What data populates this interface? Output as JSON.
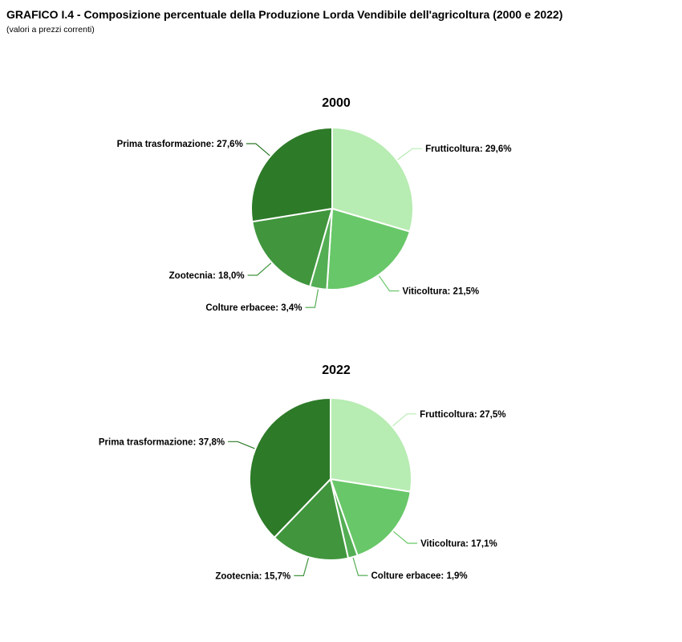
{
  "header": {
    "title": "GRAFICO I.4 - Composizione percentuale della Produzione Lorda Vendibile dell'agricoltura (2000 e 2022)",
    "subtitle": "(valori a prezzi correnti)"
  },
  "chart_data": [
    {
      "type": "pie",
      "title": "2000",
      "categories": [
        "Frutticoltura",
        "Viticoltura",
        "Colture erbacee",
        "Zootecnia",
        "Prima trasformazione"
      ],
      "values": [
        29.6,
        21.5,
        3.4,
        18.0,
        27.6
      ],
      "labels": [
        "Frutticoltura: 29,6%",
        "Viticoltura: 21,5%",
        "Colture erbacee: 3,4%",
        "Zootecnia: 18,0%",
        "Prima trasformazione: 27,6%"
      ],
      "colors": [
        "#b7ecb2",
        "#68c768",
        "#54ae54",
        "#40953d",
        "#2d7a28"
      ],
      "start_angle_deg": 0,
      "direction": "clockwise",
      "legend": "none",
      "label_style": "callout-with-leader-line"
    },
    {
      "type": "pie",
      "title": "2022",
      "categories": [
        "Frutticoltura",
        "Viticoltura",
        "Colture erbacee",
        "Zootecnia",
        "Prima trasformazione"
      ],
      "values": [
        27.5,
        17.1,
        1.9,
        15.7,
        37.8
      ],
      "labels": [
        "Frutticoltura: 27,5%",
        "Viticoltura: 17,1%",
        "Colture erbacee: 1,9%",
        "Zootecnia: 15,7%",
        "Prima trasformazione: 37,8%"
      ],
      "colors": [
        "#b7ecb2",
        "#68c768",
        "#54ae54",
        "#40953d",
        "#2d7a28"
      ],
      "start_angle_deg": 0,
      "direction": "clockwise",
      "legend": "none",
      "label_style": "callout-with-leader-line"
    }
  ]
}
